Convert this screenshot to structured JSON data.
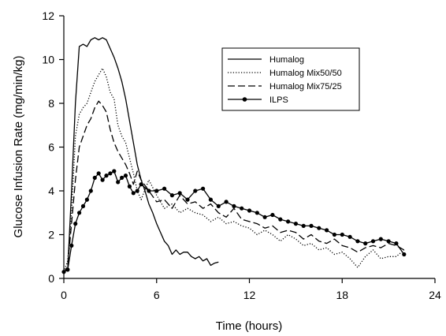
{
  "chart_data": {
    "type": "line",
    "title": "",
    "xlabel": "Time (hours)",
    "ylabel": "Glucose Infusion Rate (mg/min/kg)",
    "xlim": [
      0,
      24
    ],
    "ylim": [
      0,
      12
    ],
    "xticks": [
      0,
      6,
      12,
      18,
      24
    ],
    "yticks": [
      0,
      2,
      4,
      6,
      8,
      10,
      12
    ],
    "grid": false,
    "legend_position": "top-right",
    "series": [
      {
        "name": "Humalog",
        "style": "solid",
        "color": "#000000",
        "x": [
          0,
          0.25,
          0.5,
          0.75,
          1.0,
          1.25,
          1.5,
          1.75,
          2.0,
          2.25,
          2.5,
          2.75,
          3.0,
          3.25,
          3.5,
          3.75,
          4.0,
          4.25,
          4.5,
          4.75,
          5.0,
          5.25,
          5.5,
          5.75,
          6.0,
          6.25,
          6.5,
          6.75,
          7.0,
          7.25,
          7.5,
          7.75,
          8.0,
          8.25,
          8.5,
          8.75,
          9.0,
          9.25,
          9.5,
          9.75,
          10.0
        ],
        "y": [
          0.3,
          0.4,
          4.0,
          8.0,
          10.6,
          10.7,
          10.6,
          10.9,
          11.0,
          10.9,
          11.0,
          10.9,
          10.5,
          10.1,
          9.6,
          9.0,
          8.2,
          7.2,
          6.2,
          5.2,
          4.5,
          4.0,
          3.4,
          3.0,
          2.5,
          2.1,
          1.7,
          1.5,
          1.1,
          1.3,
          1.1,
          1.2,
          1.2,
          1.0,
          0.9,
          1.0,
          0.8,
          0.9,
          0.6,
          0.7,
          0.75
        ]
      },
      {
        "name": "Humalog Mix50/50",
        "style": "dotted",
        "color": "#000000",
        "x": [
          0,
          0.25,
          0.5,
          0.75,
          1.0,
          1.25,
          1.5,
          1.75,
          2.0,
          2.25,
          2.5,
          2.75,
          3.0,
          3.25,
          3.5,
          3.75,
          4.0,
          4.25,
          4.5,
          4.75,
          5.0,
          5.5,
          6.0,
          6.5,
          7.0,
          7.5,
          8.0,
          8.5,
          9.0,
          9.5,
          10.0,
          10.5,
          11.0,
          11.5,
          12.0,
          12.5,
          13.0,
          13.5,
          14.0,
          14.5,
          15.0,
          15.5,
          16.0,
          16.5,
          17.0,
          17.5,
          18.0,
          18.5,
          19.0,
          19.5,
          20.0,
          20.5,
          21.0,
          21.5,
          22.0
        ],
        "y": [
          0.3,
          0.8,
          3.0,
          6.5,
          7.5,
          7.8,
          8.0,
          8.5,
          9.0,
          9.3,
          9.6,
          9.2,
          8.5,
          8.2,
          7.0,
          6.5,
          6.2,
          5.5,
          4.8,
          4.0,
          3.6,
          4.5,
          3.8,
          3.2,
          3.4,
          3.0,
          3.2,
          3.0,
          2.9,
          2.6,
          2.8,
          2.5,
          2.6,
          2.4,
          2.3,
          2.0,
          2.2,
          2.0,
          1.7,
          2.0,
          1.8,
          1.5,
          1.6,
          1.3,
          1.4,
          1.1,
          1.2,
          0.9,
          0.5,
          1.0,
          1.3,
          0.9,
          1.0,
          1.0,
          1.3
        ]
      },
      {
        "name": "Humalog Mix75/25",
        "style": "dashed",
        "color": "#000000",
        "x": [
          0,
          0.25,
          0.5,
          0.75,
          1.0,
          1.25,
          1.5,
          1.75,
          2.0,
          2.25,
          2.5,
          2.75,
          3.0,
          3.25,
          3.5,
          3.75,
          4.0,
          4.25,
          4.5,
          4.75,
          5.0,
          5.5,
          6.0,
          6.5,
          7.0,
          7.5,
          8.0,
          8.5,
          9.0,
          9.5,
          10.0,
          10.5,
          11.0,
          11.5,
          12.0,
          12.5,
          13.0,
          13.5,
          14.0,
          14.5,
          15.0,
          15.5,
          16.0,
          16.5,
          17.0,
          17.5,
          18.0,
          18.5,
          19.0,
          19.5,
          20.0,
          20.5,
          21.0,
          21.5,
          22.0
        ],
        "y": [
          0.2,
          0.6,
          2.5,
          4.5,
          6.0,
          6.5,
          7.0,
          7.3,
          7.8,
          8.1,
          7.9,
          7.6,
          6.8,
          6.2,
          5.8,
          5.5,
          5.2,
          4.8,
          4.3,
          4.9,
          4.5,
          4.0,
          3.5,
          3.6,
          3.2,
          3.8,
          3.4,
          3.5,
          3.2,
          3.4,
          3.0,
          2.8,
          3.2,
          2.7,
          2.6,
          2.5,
          2.3,
          2.4,
          2.1,
          2.2,
          2.1,
          1.8,
          2.0,
          1.7,
          1.6,
          1.8,
          1.5,
          1.4,
          1.2,
          1.4,
          1.5,
          1.4,
          1.6,
          1.5,
          1.3
        ]
      },
      {
        "name": "ILPS",
        "style": "solid-circle-markers",
        "color": "#000000",
        "x": [
          0,
          0.25,
          0.5,
          0.75,
          1.0,
          1.25,
          1.5,
          1.75,
          2.0,
          2.25,
          2.5,
          2.75,
          3.0,
          3.25,
          3.5,
          3.75,
          4.0,
          4.25,
          4.5,
          4.75,
          5.0,
          5.5,
          6.0,
          6.5,
          7.0,
          7.5,
          8.0,
          8.5,
          9.0,
          9.5,
          10.0,
          10.5,
          11.0,
          11.5,
          12.0,
          12.5,
          13.0,
          13.5,
          14.0,
          14.5,
          15.0,
          15.5,
          16.0,
          16.5,
          17.0,
          17.5,
          18.0,
          18.5,
          19.0,
          19.5,
          20.0,
          20.5,
          21.0,
          21.5,
          22.0
        ],
        "y": [
          0.3,
          0.4,
          1.5,
          2.5,
          3.0,
          3.3,
          3.6,
          4.0,
          4.6,
          4.8,
          4.5,
          4.7,
          4.8,
          4.9,
          4.4,
          4.6,
          4.7,
          4.2,
          3.9,
          4.0,
          4.3,
          4.0,
          4.0,
          4.1,
          3.8,
          3.9,
          3.6,
          4.0,
          4.1,
          3.6,
          3.3,
          3.5,
          3.3,
          3.2,
          3.1,
          3.0,
          2.8,
          2.9,
          2.7,
          2.6,
          2.5,
          2.4,
          2.4,
          2.3,
          2.2,
          2.0,
          2.0,
          1.9,
          1.7,
          1.6,
          1.7,
          1.8,
          1.7,
          1.6,
          1.1
        ]
      }
    ]
  }
}
